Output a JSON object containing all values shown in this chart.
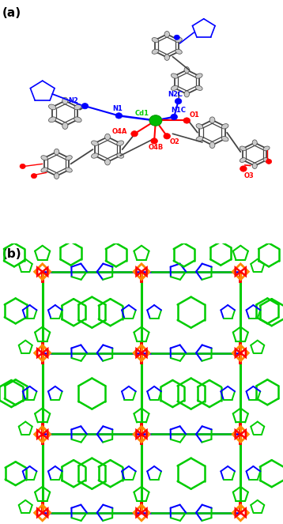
{
  "fig_width": 3.58,
  "fig_height": 6.63,
  "dpi": 100,
  "panel_a_label": "(a)",
  "panel_b_label": "(b)",
  "background_color": "#ffffff",
  "label_fontsize": 11,
  "label_fontweight": "bold",
  "GREEN": "#00cc00",
  "ORANGE": "#ff8800",
  "RED": "#ff0000",
  "BLUE": "#0000ff",
  "BLACK": "#000000",
  "GRAY": "#888888",
  "LGRAY": "#cccccc",
  "DKGRAY": "#444444"
}
